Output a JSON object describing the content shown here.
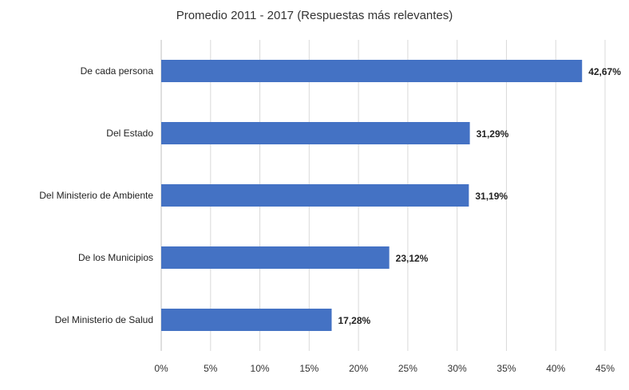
{
  "chart_data": {
    "type": "bar",
    "orientation": "horizontal",
    "title": "Promedio 2011 - 2017 (Respuestas más relevantes)",
    "xlabel": "",
    "ylabel": "",
    "categories": [
      "De cada persona",
      "Del Estado",
      "Del Ministerio de Ambiente",
      "De los Municipios",
      "Del Ministerio de Salud"
    ],
    "values": [
      42.67,
      31.29,
      31.19,
      23.12,
      17.28
    ],
    "value_labels": [
      "42,67%",
      "31,29%",
      "31,19%",
      "23,12%",
      "17,28%"
    ],
    "xlim": [
      0,
      45
    ],
    "x_ticks": [
      0,
      5,
      10,
      15,
      20,
      25,
      30,
      35,
      40,
      45
    ],
    "x_tick_labels": [
      "0%",
      "5%",
      "10%",
      "15%",
      "20%",
      "25%",
      "30%",
      "35%",
      "40%",
      "45%"
    ],
    "grid": true,
    "legend": "none",
    "bar_color": "#4472C4"
  }
}
